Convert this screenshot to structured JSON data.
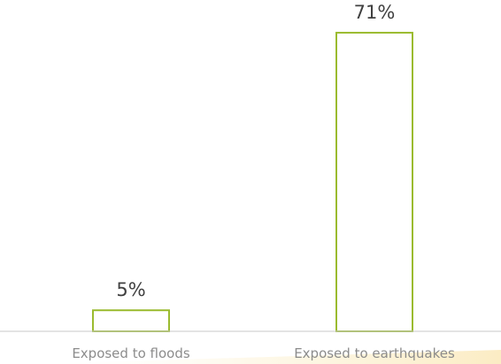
{
  "chart_data": {
    "type": "bar",
    "categories": [
      "Exposed to floods",
      "Exposed to earthquakes"
    ],
    "values": [
      5,
      71
    ],
    "data_labels": [
      "5%",
      "71%"
    ],
    "title": "",
    "xlabel": "",
    "ylabel": "",
    "ylim": [
      0,
      75
    ],
    "grid": false,
    "legend": "none",
    "colors": {
      "bar_stroke": "#9bbb2f",
      "bar_fill": "#ffffff",
      "data_label": "#404040",
      "category_label": "#8c8c8c",
      "axis_line": "#c8c8c8",
      "floor_band": "#fbf0d2"
    }
  }
}
